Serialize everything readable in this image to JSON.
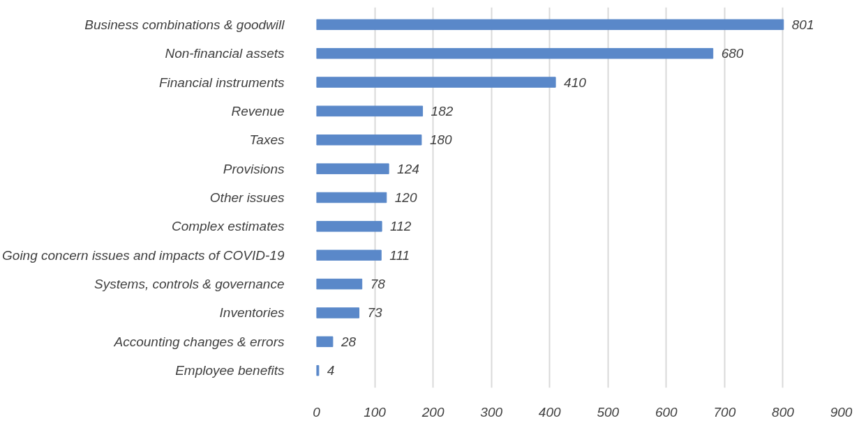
{
  "chart_data": {
    "type": "bar",
    "orientation": "horizontal",
    "categories": [
      "Business combinations & goodwill",
      "Non-financial assets",
      "Financial instruments",
      "Revenue",
      "Taxes",
      "Provisions",
      "Other issues",
      "Complex estimates",
      "Going concern issues and impacts of COVID-19",
      "Systems, controls & governance",
      "Inventories",
      "Accounting changes & errors",
      "Employee benefits"
    ],
    "values": [
      801,
      680,
      410,
      182,
      180,
      124,
      120,
      112,
      111,
      78,
      73,
      28,
      4
    ],
    "color": "#5a88c9",
    "xlim": [
      0,
      900
    ],
    "xticks": [
      0,
      100,
      200,
      300,
      400,
      500,
      600,
      700,
      800,
      900
    ],
    "grid": "x",
    "data_labels": true
  }
}
